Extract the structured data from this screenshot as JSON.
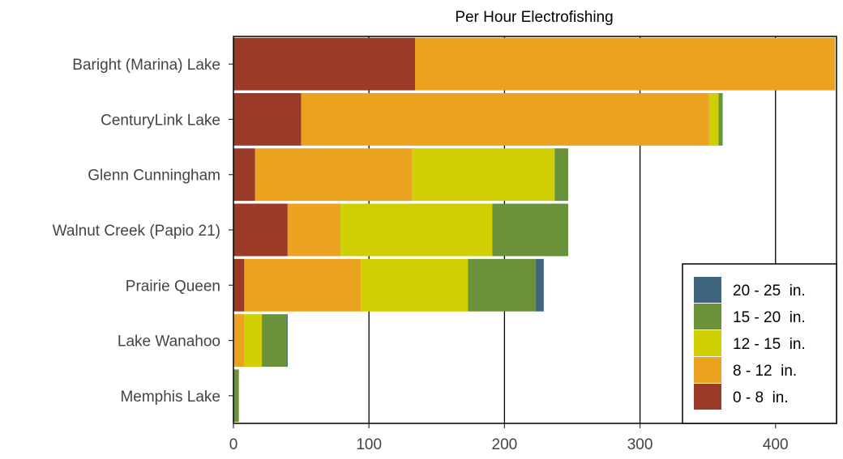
{
  "chart_data": {
    "type": "bar",
    "orientation": "horizontal",
    "stacked": true,
    "title": "Per Hour Electrofishing",
    "xlabel": "",
    "ylabel": "",
    "xlim": [
      0,
      445
    ],
    "xticks": [
      0,
      100,
      200,
      300,
      400
    ],
    "xtick_labels": [
      "0",
      "100",
      "200",
      "300",
      "400"
    ],
    "grid": "vertical major",
    "legend_position": "bottom-right",
    "categories": [
      "Baright (Marina) Lake",
      "CenturyLink Lake",
      "Glenn Cunningham",
      "Walnut Creek (Papio 21)",
      "Prairie Queen",
      "Lake Wanahoo",
      "Memphis Lake"
    ],
    "series": [
      {
        "name": "0 - 8  in.",
        "color": "#9b3a26",
        "values": [
          134,
          50,
          16,
          40,
          8,
          0,
          0
        ]
      },
      {
        "name": "8 - 12  in.",
        "color": "#eba21f",
        "values": [
          310,
          301,
          116,
          39,
          86,
          8,
          0
        ]
      },
      {
        "name": "12 - 15  in.",
        "color": "#cfcf04",
        "values": [
          0,
          7,
          105,
          112,
          79,
          13,
          0
        ]
      },
      {
        "name": "15 - 20  in.",
        "color": "#6a923a",
        "values": [
          0,
          3,
          10,
          56,
          50,
          18,
          4
        ]
      },
      {
        "name": "20 - 25  in.",
        "color": "#3f6580",
        "values": [
          0,
          0,
          0,
          0,
          6,
          1,
          0
        ]
      }
    ],
    "legend_order": [
      "20 - 25  in.",
      "15 - 20  in.",
      "12 - 15  in.",
      "8 - 12  in.",
      "0 - 8  in."
    ]
  }
}
